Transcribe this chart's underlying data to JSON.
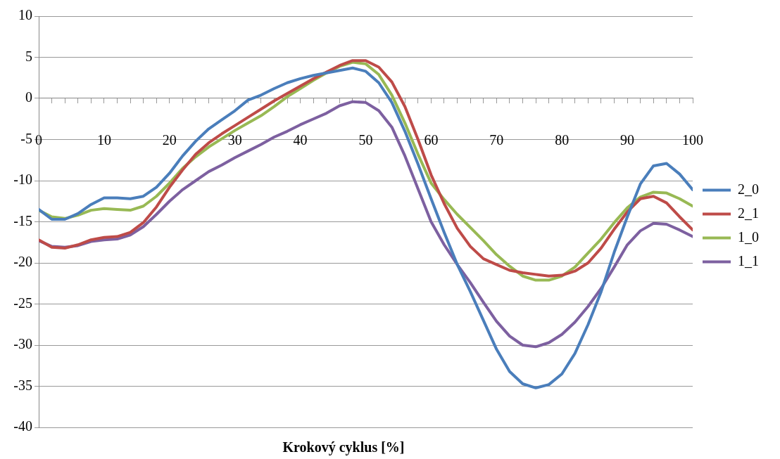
{
  "chart_data": {
    "type": "line",
    "xlabel": "Krokový cyklus [%]",
    "x": [
      0,
      2,
      4,
      6,
      8,
      10,
      12,
      14,
      16,
      18,
      20,
      22,
      24,
      26,
      28,
      30,
      32,
      34,
      36,
      38,
      40,
      42,
      44,
      46,
      48,
      50,
      52,
      54,
      56,
      58,
      60,
      62,
      64,
      66,
      68,
      70,
      72,
      74,
      76,
      78,
      80,
      82,
      84,
      86,
      88,
      90,
      92,
      94,
      96,
      98,
      100
    ],
    "xlim": [
      0,
      100
    ],
    "xticks": [
      0,
      {
        "value": 2,
        "label": null
      },
      {
        "value": 4,
        "label": null
      },
      {
        "value": 6,
        "label": null
      },
      {
        "value": 8,
        "label": null
      },
      10,
      {
        "value": 12,
        "label": null
      },
      {
        "value": 14,
        "label": null
      },
      {
        "value": 16,
        "label": null
      },
      {
        "value": 18,
        "label": null
      },
      20,
      {
        "value": 22,
        "label": null
      },
      {
        "value": 24,
        "label": null
      },
      {
        "value": 26,
        "label": null
      },
      {
        "value": 28,
        "label": null
      },
      30,
      {
        "value": 32,
        "label": null
      },
      {
        "value": 34,
        "label": null
      },
      {
        "value": 36,
        "label": null
      },
      {
        "value": 38,
        "label": null
      },
      40,
      {
        "value": 42,
        "label": null
      },
      {
        "value": 44,
        "label": null
      },
      {
        "value": 46,
        "label": null
      },
      {
        "value": 48,
        "label": null
      },
      50,
      {
        "value": 52,
        "label": null
      },
      {
        "value": 54,
        "label": null
      },
      {
        "value": 56,
        "label": null
      },
      {
        "value": 58,
        "label": null
      },
      60,
      {
        "value": 62,
        "label": null
      },
      {
        "value": 64,
        "label": null
      },
      {
        "value": 66,
        "label": null
      },
      {
        "value": 68,
        "label": null
      },
      70,
      {
        "value": 72,
        "label": null
      },
      {
        "value": 74,
        "label": null
      },
      {
        "value": 76,
        "label": null
      },
      {
        "value": 78,
        "label": null
      },
      80,
      {
        "value": 82,
        "label": null
      },
      {
        "value": 84,
        "label": null
      },
      {
        "value": 86,
        "label": null
      },
      {
        "value": 88,
        "label": null
      },
      90,
      {
        "value": 92,
        "label": null
      },
      {
        "value": 94,
        "label": null
      },
      {
        "value": 96,
        "label": null
      },
      {
        "value": 98,
        "label": null
      },
      100
    ],
    "ylim": [
      -40,
      10
    ],
    "yticks": [
      -40,
      -35,
      -30,
      -25,
      -20,
      -15,
      -10,
      -5,
      0,
      5,
      10
    ],
    "grid": "y",
    "legend": "right",
    "marker": "none",
    "line_style": "solid",
    "series": [
      {
        "name": "2_0",
        "color": "#4a7ebb",
        "values": [
          -13.5,
          -14.7,
          -14.7,
          -14,
          -12.9,
          -12.1,
          -12.1,
          -12.2,
          -11.9,
          -10.8,
          -9.1,
          -7,
          -5.2,
          -3.7,
          -2.6,
          -1.5,
          -0.2,
          0.4,
          1.2,
          1.9,
          2.4,
          2.8,
          3.1,
          3.4,
          3.7,
          3.3,
          1.9,
          -0.5,
          -4,
          -8,
          -12.2,
          -16.3,
          -20.2,
          -23.5,
          -27,
          -30.5,
          -33.2,
          -34.7,
          -35.2,
          -34.8,
          -33.5,
          -31,
          -27.5,
          -23.5,
          -18.7,
          -14.4,
          -10.4,
          -8.2,
          -7.9,
          -9.2,
          -11.1
        ]
      },
      {
        "name": "2_1",
        "color": "#be4b48",
        "values": [
          -17.2,
          -18.1,
          -18.2,
          -17.8,
          -17.2,
          -16.9,
          -16.8,
          -16.3,
          -15.1,
          -13.2,
          -10.8,
          -8.7,
          -6.8,
          -5.4,
          -4.3,
          -3.3,
          -2.3,
          -1.3,
          -0.3,
          0.6,
          1.5,
          2.4,
          3.2,
          4,
          4.6,
          4.6,
          3.8,
          2,
          -1,
          -5,
          -9.3,
          -12.8,
          -15.8,
          -18,
          -19.5,
          -20.2,
          -20.9,
          -21.2,
          -21.4,
          -21.6,
          -21.5,
          -21,
          -20,
          -18.2,
          -15.9,
          -13.8,
          -12.2,
          -11.9,
          -12.7,
          -14.4,
          -16
        ]
      },
      {
        "name": "1_0",
        "color": "#98b954",
        "values": [
          -13.6,
          -14.4,
          -14.6,
          -14.2,
          -13.6,
          -13.4,
          -13.5,
          -13.6,
          -13.1,
          -11.9,
          -10.3,
          -8.5,
          -7.1,
          -5.9,
          -4.9,
          -3.9,
          -3,
          -2.1,
          -1,
          0.2,
          1.2,
          2.2,
          3.1,
          3.9,
          4.4,
          4.2,
          2.9,
          0.4,
          -3,
          -6.8,
          -10.3,
          -12.3,
          -14.1,
          -15.7,
          -17.3,
          -19,
          -20.4,
          -21.6,
          -22.1,
          -22.1,
          -21.6,
          -20.5,
          -18.8,
          -17.1,
          -15.1,
          -13.3,
          -12,
          -11.4,
          -11.5,
          -12.2,
          -13.1
        ]
      },
      {
        "name": "1_1",
        "color": "#7d60a0",
        "values": [
          -17.3,
          -18,
          -18.1,
          -17.9,
          -17.4,
          -17.2,
          -17.1,
          -16.6,
          -15.6,
          -14.1,
          -12.5,
          -11.1,
          -10,
          -8.9,
          -8.1,
          -7.2,
          -6.4,
          -5.6,
          -4.7,
          -4,
          -3.2,
          -2.5,
          -1.8,
          -0.9,
          -0.4,
          -0.5,
          -1.5,
          -3.5,
          -7,
          -11,
          -15,
          -17.8,
          -20.2,
          -22.4,
          -24.8,
          -27.1,
          -28.9,
          -30,
          -30.2,
          -29.7,
          -28.7,
          -27.2,
          -25.3,
          -23.1,
          -20.5,
          -17.8,
          -16.1,
          -15.2,
          -15.3,
          -16,
          -16.8
        ]
      }
    ]
  }
}
